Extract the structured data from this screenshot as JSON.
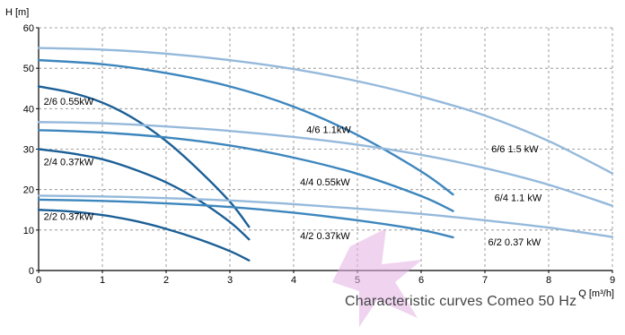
{
  "caption": "Characteristic curves Comeo 50 Hz",
  "chart_data": {
    "type": "line",
    "title": "",
    "xlabel": "Q [m³/h]",
    "ylabel": "H [m]",
    "xlim": [
      0,
      9
    ],
    "ylim": [
      0,
      60
    ],
    "x_ticks": [
      0,
      1,
      2,
      3,
      4,
      5,
      6,
      7,
      8,
      9
    ],
    "y_ticks": [
      0,
      10,
      20,
      30,
      40,
      50,
      60
    ],
    "grid": "dashed",
    "legend": "none",
    "colors": {
      "dark": "#1b5f96",
      "medium": "#3d86bd",
      "light": "#95b9db",
      "grid": "#888888",
      "watermark": "#d88fd6"
    },
    "series": [
      {
        "name": "2/6 0.55kW",
        "color": "dark",
        "label_x": 0.08,
        "label_y": 41,
        "x": [
          0,
          0.5,
          1,
          1.5,
          2,
          2.5,
          3,
          3.3
        ],
        "y": [
          45.5,
          44,
          41.5,
          37.5,
          32,
          25,
          17,
          10.8
        ]
      },
      {
        "name": "2/4 0.37kW",
        "color": "dark",
        "label_x": 0.08,
        "label_y": 26,
        "x": [
          0,
          0.5,
          1,
          1.5,
          2,
          2.5,
          3,
          3.3
        ],
        "y": [
          30,
          29,
          27.5,
          25,
          21.8,
          17.5,
          12,
          7.7
        ]
      },
      {
        "name": "2/2 0.37kW",
        "color": "dark",
        "label_x": 0.08,
        "label_y": 12.5,
        "x": [
          0,
          0.5,
          1,
          1.5,
          2,
          2.5,
          3,
          3.3
        ],
        "y": [
          15,
          14.6,
          13.7,
          12.3,
          10.3,
          7.8,
          4.8,
          2.5
        ]
      },
      {
        "name": "4/6 1.1kW",
        "color": "medium",
        "label_x": 4.2,
        "label_y": 34,
        "x": [
          0,
          1,
          2,
          3,
          4,
          5,
          6,
          6.5
        ],
        "y": [
          52,
          51,
          48.8,
          45.5,
          40.5,
          33.5,
          24.5,
          18.8
        ]
      },
      {
        "name": "4/4 0.55kW",
        "color": "medium",
        "label_x": 4.1,
        "label_y": 21,
        "x": [
          0,
          1,
          2,
          3,
          4,
          5,
          6,
          6.5
        ],
        "y": [
          34.7,
          34.1,
          32.9,
          30.9,
          27.9,
          23.9,
          18.4,
          14.7
        ]
      },
      {
        "name": "4/2 0.37kW",
        "color": "medium",
        "label_x": 4.1,
        "label_y": 7.8,
        "x": [
          0,
          1,
          2,
          3,
          4,
          5,
          6,
          6.5
        ],
        "y": [
          17.5,
          17.2,
          16.6,
          15.7,
          14.3,
          12.4,
          10,
          8.2
        ]
      },
      {
        "name": "6/6 1.5 kW",
        "color": "light",
        "label_x": 7.1,
        "label_y": 29.2,
        "x": [
          0,
          1,
          2,
          3,
          4,
          5,
          6,
          7,
          8,
          9
        ],
        "y": [
          55,
          54.6,
          53.6,
          52,
          49.8,
          46.8,
          43,
          38.3,
          32,
          24
        ]
      },
      {
        "name": "6/4 1.1 kW",
        "color": "light",
        "label_x": 7.15,
        "label_y": 17.2,
        "x": [
          0,
          1,
          2,
          3,
          4,
          5,
          6,
          7,
          8,
          9
        ],
        "y": [
          36.7,
          36.4,
          35.6,
          34.5,
          33,
          31.1,
          28.6,
          25.3,
          21.2,
          16
        ]
      },
      {
        "name": "6/2 0.37 kW",
        "color": "light",
        "label_x": 7.05,
        "label_y": 6.2,
        "x": [
          0,
          1,
          2,
          3,
          4,
          5,
          6,
          7,
          8,
          9
        ],
        "y": [
          18.5,
          18.3,
          17.9,
          17.3,
          16.4,
          15.3,
          14,
          12.4,
          10.6,
          8.3
        ]
      }
    ]
  }
}
